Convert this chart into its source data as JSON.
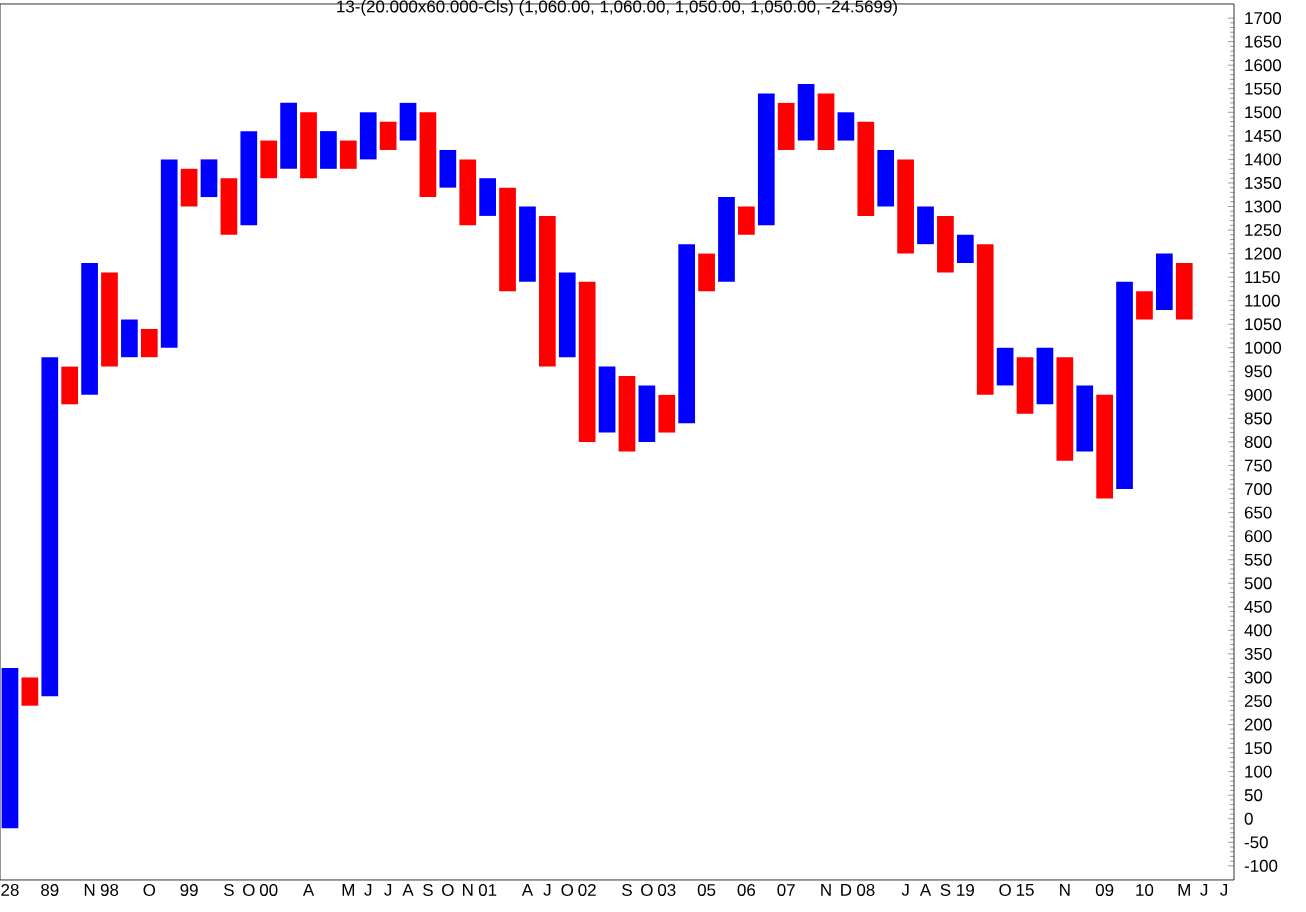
{
  "chart_data": {
    "type": "bar",
    "title": "13-(20.000x60.000-Cls) (1,060.00, 1,060.00, 1,050.00, 1,050.00, -24.5699)",
    "categories": [
      "28",
      null,
      "89",
      null,
      "N",
      "98",
      null,
      "O",
      null,
      "99",
      null,
      "S",
      "O",
      "00",
      null,
      "A",
      null,
      "M",
      "J",
      "J",
      "A",
      "S",
      "O",
      "N",
      "01",
      null,
      "A",
      "J",
      "O",
      "02",
      null,
      "S",
      "O",
      "03",
      null,
      "05",
      null,
      "06",
      null,
      "07",
      null,
      "N",
      "D",
      "08",
      null,
      "J",
      "A",
      "S",
      "19",
      null,
      "O",
      "15",
      null,
      "N",
      null,
      "09",
      null,
      "10",
      null,
      "M",
      "J",
      "J"
    ],
    "base": [
      -20,
      240,
      260,
      880,
      900,
      960,
      980,
      980,
      1000,
      1300,
      1320,
      1240,
      1260,
      1360,
      1380,
      1360,
      1380,
      1380,
      1400,
      1420,
      1440,
      1320,
      1340,
      1260,
      1280,
      1120,
      1140,
      960,
      980,
      800,
      820,
      780,
      800,
      820,
      840,
      1120,
      1140,
      1240,
      1260,
      1420,
      1440,
      1420,
      1440,
      1280,
      1300,
      1200,
      1220,
      1160,
      1180,
      900,
      920,
      860,
      880,
      760,
      780,
      680,
      700,
      1060,
      1080,
      1060,
      null,
      null
    ],
    "values": [
      340,
      60,
      720,
      80,
      280,
      200,
      80,
      60,
      400,
      80,
      80,
      120,
      200,
      80,
      140,
      140,
      80,
      60,
      100,
      60,
      80,
      180,
      80,
      140,
      80,
      220,
      160,
      320,
      180,
      340,
      140,
      160,
      120,
      80,
      380,
      80,
      180,
      60,
      280,
      100,
      120,
      120,
      60,
      200,
      120,
      200,
      80,
      120,
      60,
      320,
      80,
      120,
      120,
      220,
      140,
      220,
      440,
      60,
      120,
      120,
      null,
      null
    ],
    "colors": [
      "#0000ff",
      "#ff0000",
      "#0000ff",
      "#ff0000",
      "#0000ff",
      "#ff0000",
      "#0000ff",
      "#ff0000",
      "#0000ff",
      "#ff0000",
      "#0000ff",
      "#ff0000",
      "#0000ff",
      "#ff0000",
      "#0000ff",
      "#ff0000",
      "#0000ff",
      "#ff0000",
      "#0000ff",
      "#ff0000",
      "#0000ff",
      "#ff0000",
      "#0000ff",
      "#ff0000",
      "#0000ff",
      "#ff0000",
      "#0000ff",
      "#ff0000",
      "#0000ff",
      "#ff0000",
      "#0000ff",
      "#ff0000",
      "#0000ff",
      "#ff0000",
      "#0000ff",
      "#ff0000",
      "#0000ff",
      "#ff0000",
      "#0000ff",
      "#ff0000",
      "#0000ff",
      "#ff0000",
      "#0000ff",
      "#ff0000",
      "#0000ff",
      "#ff0000",
      "#0000ff",
      "#ff0000",
      "#0000ff",
      "#ff0000",
      "#0000ff",
      "#ff0000",
      "#0000ff",
      "#ff0000",
      "#0000ff",
      "#ff0000",
      "#0000ff",
      "#ff0000",
      "#0000ff",
      "#ff0000",
      "#ffffff",
      "#ffffff"
    ],
    "ylim": [
      -130,
      1730
    ],
    "yticks": [
      -100,
      -50,
      0,
      50,
      100,
      150,
      200,
      250,
      300,
      350,
      400,
      450,
      500,
      550,
      600,
      650,
      700,
      750,
      800,
      850,
      900,
      950,
      1000,
      1050,
      1100,
      1150,
      1200,
      1250,
      1300,
      1350,
      1400,
      1450,
      1500,
      1550,
      1600,
      1650,
      1700
    ]
  }
}
